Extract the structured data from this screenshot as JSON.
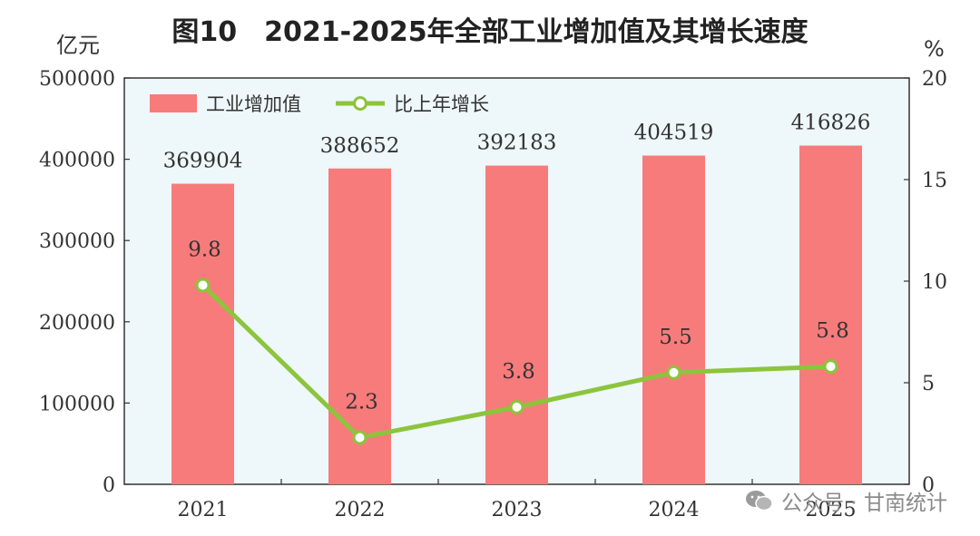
{
  "chart_data": {
    "type": "bar",
    "title": "图10　2021-2025年全部工业增加值及其增长速度",
    "categories": [
      "2021",
      "2022",
      "2023",
      "2024",
      "2025"
    ],
    "y_left": {
      "unit": "亿元",
      "range": [
        0,
        500000
      ],
      "ticks": [
        "0",
        "100000",
        "200000",
        "300000",
        "400000",
        "500000"
      ]
    },
    "y_right": {
      "unit": "%",
      "range": [
        0,
        20
      ],
      "ticks": [
        "0",
        "5",
        "10",
        "15",
        "20"
      ]
    },
    "series": [
      {
        "name": "工业增加值",
        "kind": "bar",
        "axis": "left",
        "color": "#f77b7b",
        "values": [
          369904,
          388652,
          392183,
          404519,
          416826
        ],
        "labels": [
          "369904",
          "388652",
          "392183",
          "404519",
          "416826"
        ]
      },
      {
        "name": "比上年增长",
        "kind": "line",
        "axis": "right",
        "color": "#8cc43c",
        "values": [
          9.8,
          2.3,
          3.8,
          5.5,
          5.8
        ],
        "labels": [
          "9.8",
          "2.3",
          "3.8",
          "5.5",
          "5.8"
        ]
      }
    ],
    "legend_position": "top-left",
    "plot_background": "#eef7fa",
    "grid": false
  },
  "watermark": {
    "text": "公众号 · 甘南统计",
    "icon": "wechat-icon"
  }
}
